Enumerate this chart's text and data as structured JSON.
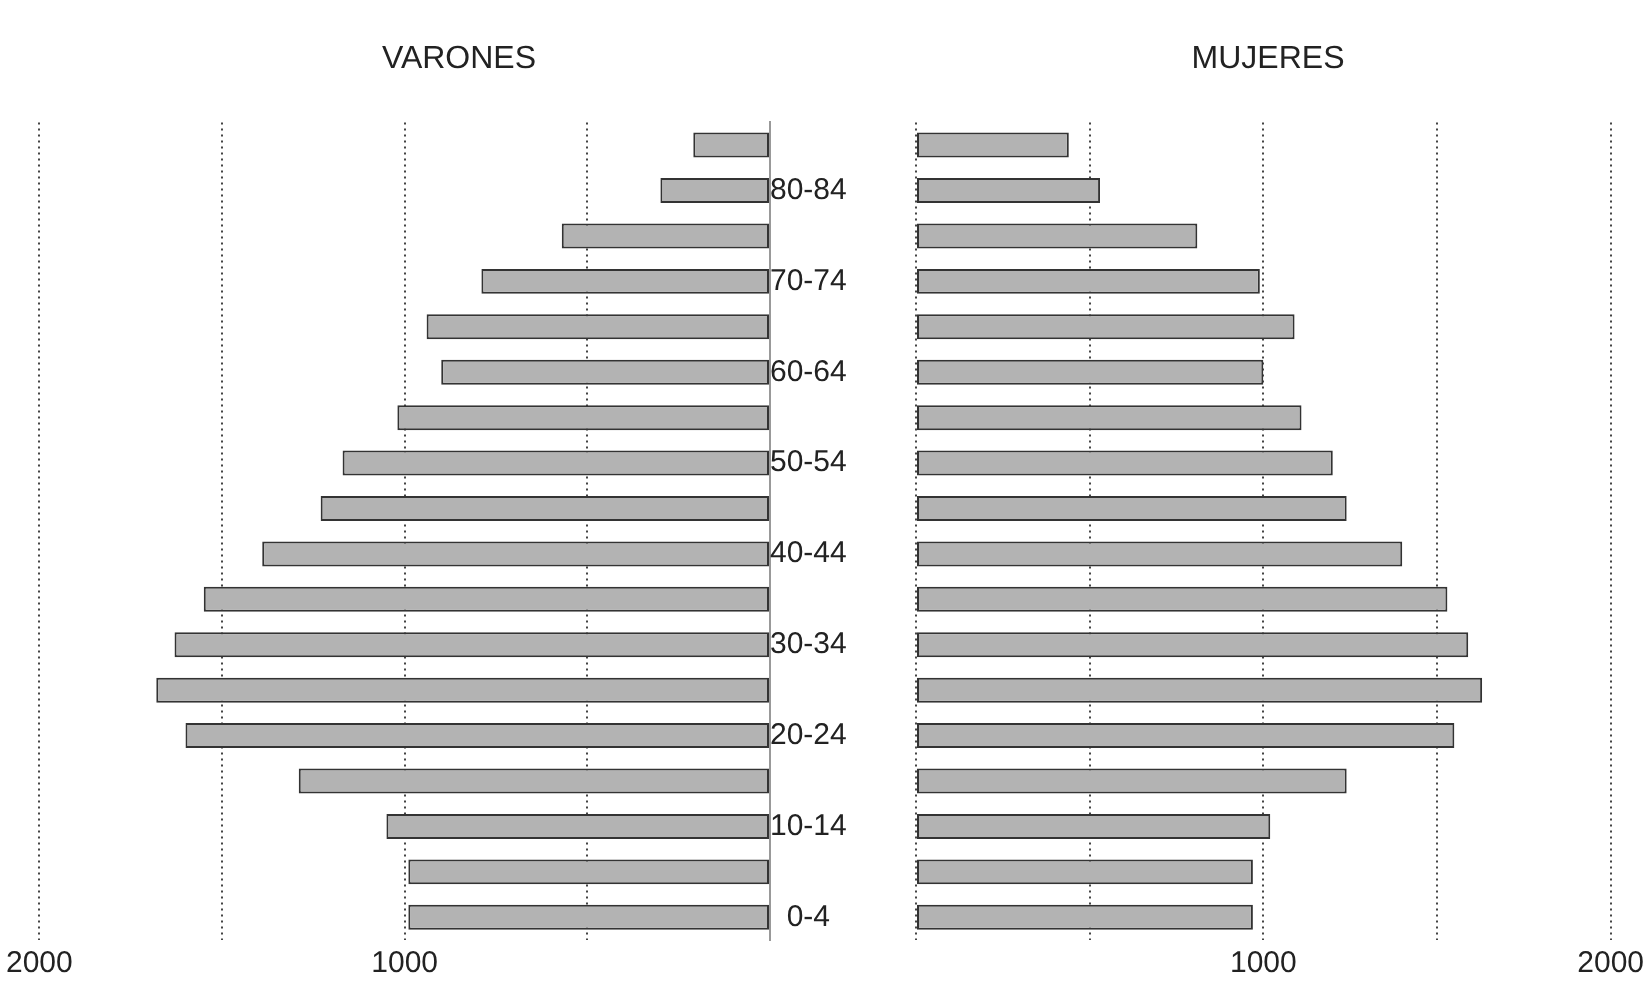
{
  "chart_data": [
    {
      "type": "bar",
      "orientation": "horizontal",
      "title": "VARONES",
      "categories": [
        null,
        "80-84",
        null,
        "70-74",
        null,
        "60-64",
        null,
        "50-54",
        null,
        "40-44",
        null,
        "30-34",
        null,
        "20-24",
        null,
        "10-14",
        null,
        "0-4"
      ],
      "values": [
        210,
        300,
        570,
        790,
        940,
        900,
        1020,
        1170,
        1230,
        1390,
        1550,
        1630,
        1680,
        1600,
        1290,
        1050,
        990,
        990
      ],
      "color": "#b3b3b3",
      "xlim": [
        2000,
        0
      ],
      "xticks": [
        {
          "value": 2000,
          "label": "2000"
        },
        {
          "value": 1500,
          "label": null
        },
        {
          "value": 1000,
          "label": "1000"
        },
        {
          "value": 500,
          "label": null
        },
        {
          "value": 0,
          "label": null
        }
      ],
      "grid": "x"
    },
    {
      "type": "bar",
      "orientation": "horizontal",
      "title": "MUJERES",
      "categories": [
        null,
        null,
        null,
        null,
        null,
        null,
        null,
        null,
        null,
        null,
        null,
        null,
        null,
        null,
        null,
        null,
        null,
        null
      ],
      "values": [
        440,
        530,
        810,
        990,
        1090,
        1000,
        1110,
        1200,
        1240,
        1400,
        1530,
        1590,
        1630,
        1550,
        1240,
        1020,
        970,
        970
      ],
      "color": "#b3b3b3",
      "xlim": [
        0,
        2000
      ],
      "xticks": [
        {
          "value": 0,
          "label": null
        },
        {
          "value": 500,
          "label": null
        },
        {
          "value": 1000,
          "label": "1000"
        },
        {
          "value": 1500,
          "label": null
        },
        {
          "value": 2000,
          "label": "2000"
        }
      ],
      "grid": "x",
      "tick_labels": "x"
    }
  ]
}
